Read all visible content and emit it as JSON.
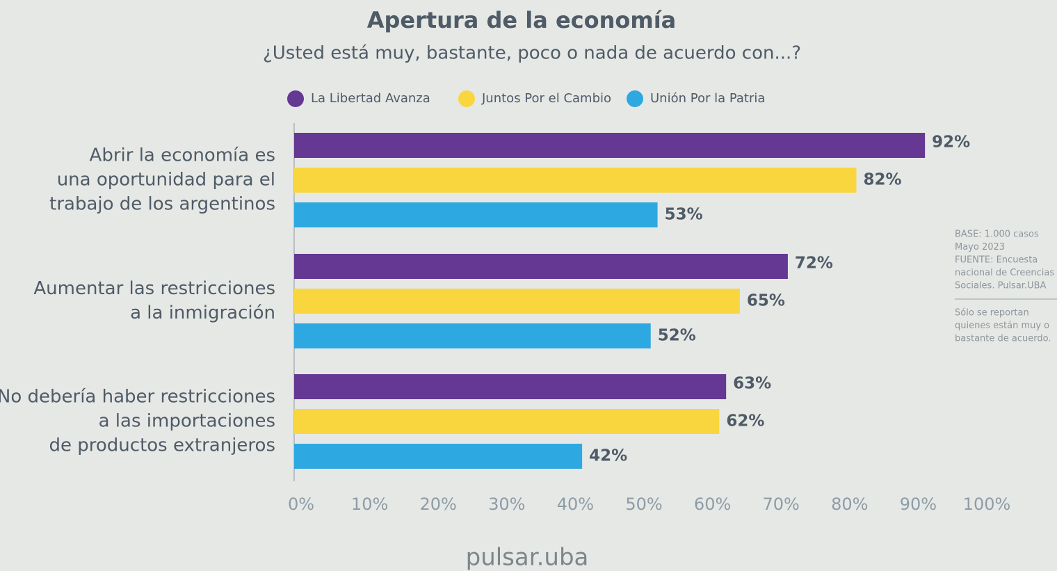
{
  "chart_data": {
    "type": "hbar",
    "title": "Apertura de la economía",
    "subtitle": "¿Usted está muy, bastante, poco o nada de acuerdo con...?",
    "categories": [
      [
        "Abrir la economía es",
        "una oportunidad para el",
        "trabajo de los argentinos"
      ],
      [
        "Aumentar las restricciones",
        "a la inmigración"
      ],
      [
        "No debería haber restricciones",
        "a las importaciones",
        "de productos extranjeros"
      ]
    ],
    "series": [
      {
        "name": "La Libertad Avanza",
        "color": "#643893",
        "values": [
          92,
          72,
          63
        ],
        "value_labels": [
          "92%",
          "72%",
          "63%"
        ]
      },
      {
        "name": "Juntos Por el Cambio",
        "color": "#f9d63e",
        "values": [
          82,
          65,
          62
        ],
        "value_labels": [
          "82%",
          "65%",
          "62%"
        ]
      },
      {
        "name": "Unión Por la Patria",
        "color": "#2ea8e0",
        "values": [
          53,
          52,
          42
        ],
        "value_labels": [
          "53%",
          "52%",
          "42%"
        ]
      }
    ],
    "xlim": [
      0,
      100
    ],
    "xticks": [
      {
        "value": 0,
        "label": "0%"
      },
      {
        "value": 10,
        "label": "10%"
      },
      {
        "value": 20,
        "label": "20%"
      },
      {
        "value": 30,
        "label": "30%"
      },
      {
        "value": 40,
        "label": "40%"
      },
      {
        "value": 50,
        "label": "50%"
      },
      {
        "value": 60,
        "label": "60%"
      },
      {
        "value": 70,
        "label": "70%"
      },
      {
        "value": 80,
        "label": "80%"
      },
      {
        "value": 90,
        "label": "90%"
      },
      {
        "value": 100,
        "label": "100%"
      }
    ],
    "grid": false,
    "legend": "top",
    "notes": {
      "source": [
        "BASE: 1.000 casos",
        "Mayo 2023",
        "FUENTE: Encuesta",
        "nacional de Creencias",
        "Sociales. Pulsar.UBA"
      ],
      "disclaimer": [
        "Sólo se reportan",
        "quienes están muy o",
        "bastante de acuerdo."
      ]
    },
    "logo": "pulsar.uba"
  }
}
